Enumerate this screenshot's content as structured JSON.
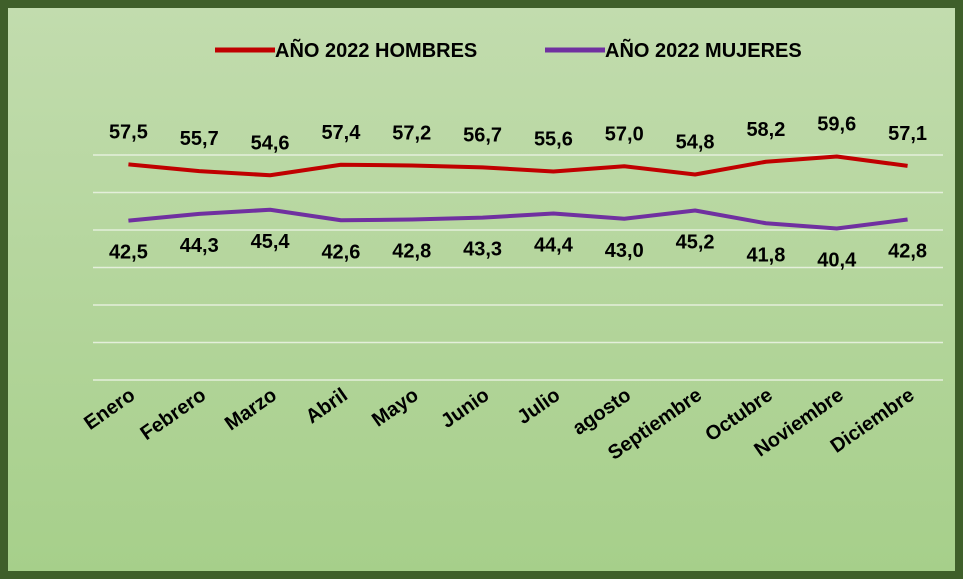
{
  "chart_data": {
    "type": "line",
    "categories": [
      "Enero",
      "Febrero",
      "Marzo",
      "Abril",
      "Mayo",
      "Junio",
      "Julio",
      "agosto",
      "Septiembre",
      "Octubre",
      "Noviembre",
      "Diciembre"
    ],
    "series": [
      {
        "name": "AÑO 2022 HOMBRES",
        "color": "#c00000",
        "values": [
          57.5,
          55.7,
          54.6,
          57.4,
          57.2,
          56.7,
          55.6,
          57.0,
          54.8,
          58.2,
          59.6,
          57.1
        ],
        "value_labels": [
          "57,5",
          "55,7",
          "54,6",
          "57,4",
          "57,2",
          "56,7",
          "55,6",
          "57,0",
          "54,8",
          "58,2",
          "59,6",
          "57,1"
        ]
      },
      {
        "name": "AÑO 2022 MUJERES",
        "color": "#7030a0",
        "values": [
          42.5,
          44.3,
          45.4,
          42.6,
          42.8,
          43.3,
          44.4,
          43.0,
          45.2,
          41.8,
          40.4,
          42.8
        ],
        "value_labels": [
          "42,5",
          "44,3",
          "45,4",
          "42,6",
          "42,8",
          "43,3",
          "44,4",
          "43,0",
          "45,2",
          "41,8",
          "40,4",
          "42,8"
        ]
      }
    ],
    "ylim": [
      0,
      60
    ],
    "yticks": [
      0,
      10,
      20,
      30,
      40,
      50,
      60
    ],
    "grid": true,
    "legend": "top"
  }
}
